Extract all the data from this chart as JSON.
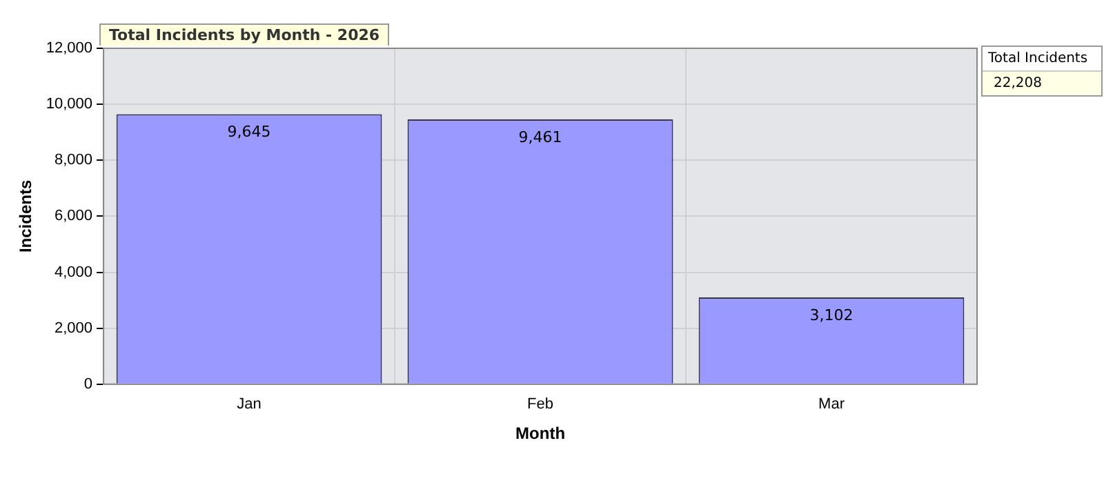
{
  "chart_data": {
    "type": "bar",
    "title": "Total Incidents by Month - 2026",
    "xlabel": "Month",
    "ylabel": "Incidents",
    "legend_title": "Total Incidents",
    "annotations": [
      "22,208"
    ],
    "categories": [
      "Jan",
      "Feb",
      "Mar"
    ],
    "series": [
      {
        "color": "#9999ff",
        "values": [
          9645,
          9461,
          3102
        ],
        "value_labels": [
          "9,645",
          "9,461",
          "3,102"
        ]
      }
    ],
    "ylim": [
      0,
      12000
    ],
    "yticks": [
      {
        "value": 0,
        "label": "0"
      },
      {
        "value": 2000,
        "label": "2,000"
      },
      {
        "value": 4000,
        "label": "4,000"
      },
      {
        "value": 6000,
        "label": "6,000"
      },
      {
        "value": 8000,
        "label": "8,000"
      },
      {
        "value": 10000,
        "label": "10,000"
      },
      {
        "value": 12000,
        "label": "12,000"
      }
    ],
    "grid": true
  }
}
